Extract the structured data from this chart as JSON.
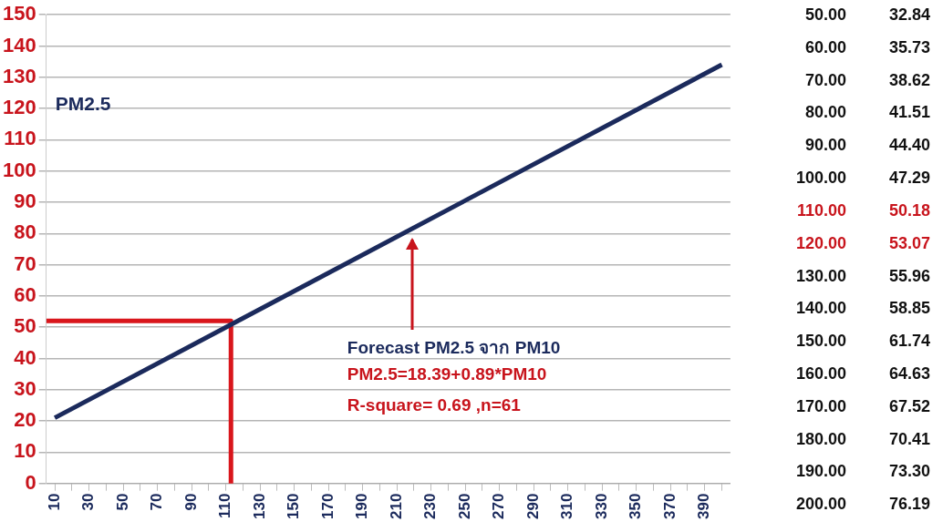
{
  "chart_data": [
    {
      "type": "line",
      "ylabel": "PM2.5",
      "series": [
        {
          "color": "#1b2a5c",
          "values": [
            21,
            134
          ],
          "x": [
            10,
            400
          ]
        },
        {
          "color": "#d9161c",
          "x": [
            5,
            113,
            113
          ],
          "values": [
            52,
            52,
            0
          ]
        }
      ],
      "xlim": [
        5,
        405
      ],
      "xticks": [
        10,
        {
          "value": 20,
          "label": null
        },
        30,
        {
          "value": 40,
          "label": null
        },
        50,
        {
          "value": 60,
          "label": null
        },
        70,
        {
          "value": 80,
          "label": null
        },
        90,
        {
          "value": 100,
          "label": null
        },
        110,
        {
          "value": 120,
          "label": null
        },
        130,
        {
          "value": 140,
          "label": null
        },
        150,
        {
          "value": 160,
          "label": null
        },
        170,
        {
          "value": 180,
          "label": null
        },
        190,
        {
          "value": 200,
          "label": null
        },
        210,
        {
          "value": 220,
          "label": null
        },
        230,
        {
          "value": 240,
          "label": null
        },
        250,
        {
          "value": 260,
          "label": null
        },
        270,
        {
          "value": 280,
          "label": null
        },
        290,
        {
          "value": 300,
          "label": null
        },
        310,
        {
          "value": 320,
          "label": null
        },
        330,
        {
          "value": 340,
          "label": null
        },
        350,
        {
          "value": 360,
          "label": null
        },
        370,
        {
          "value": 380,
          "label": null
        },
        390,
        {
          "value": 400,
          "label": null
        }
      ],
      "ylim": [
        0,
        150
      ],
      "yticks": [
        0,
        10,
        20,
        30,
        40,
        50,
        60,
        70,
        80,
        90,
        100,
        110,
        120,
        130,
        140,
        150
      ],
      "grid": "y",
      "legend": false,
      "marker": "none",
      "line_style": "solid",
      "annotations": [
        "Forecast PM2.5 จาก PM10",
        "PM2.5=18.39+0.89*PM10",
        "R-square= 0.69 ,n=61"
      ]
    },
    {
      "type": "other",
      "annotations": [
        "50.00 32.84",
        "60.00 35.73",
        "70.00 38.62",
        "80.00 41.51",
        "90.00 44.40",
        "100.00 47.29",
        "110.00 50.18",
        "120.00 53.07",
        "130.00 55.96",
        "140.00 58.85",
        "150.00 61.74",
        "160.00 64.63",
        "170.00 67.52",
        "180.00 70.41",
        "190.00 73.30",
        "200.00 76.19"
      ],
      "colors": [
        "#111111",
        "#111111",
        "#111111",
        "#111111",
        "#111111",
        "#111111",
        "#c8141c",
        "#c8141c",
        "#111111",
        "#111111",
        "#111111",
        "#111111",
        "#111111",
        "#111111",
        "#111111",
        "#111111"
      ]
    }
  ]
}
